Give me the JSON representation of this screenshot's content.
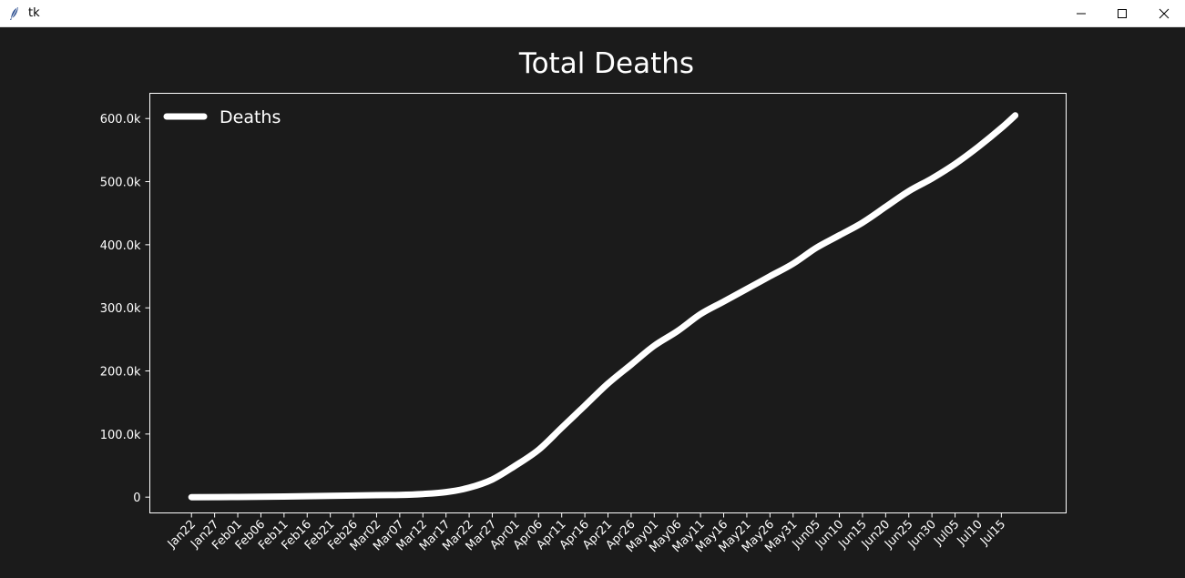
{
  "window": {
    "title": "tk"
  },
  "chart_data": {
    "type": "line",
    "title": "Total Deaths",
    "xlabel": "",
    "ylabel": "",
    "legend": {
      "placement": "top-left",
      "entries": [
        "Deaths"
      ]
    },
    "grid": false,
    "x_ticks": [
      "Jan22",
      "Jan27",
      "Feb01",
      "Feb06",
      "Feb11",
      "Feb16",
      "Feb21",
      "Feb26",
      "Mar02",
      "Mar07",
      "Mar12",
      "Mar17",
      "Mar22",
      "Mar27",
      "Apr01",
      "Apr06",
      "Apr11",
      "Apr16",
      "Apr21",
      "Apr26",
      "May01",
      "May06",
      "May11",
      "May16",
      "May21",
      "May26",
      "May31",
      "Jun05",
      "Jun10",
      "Jun15",
      "Jun20",
      "Jun25",
      "Jun30",
      "Jul05",
      "Jul10",
      "Jul15"
    ],
    "y_ticks": [
      "0",
      "100.0k",
      "200.0k",
      "300.0k",
      "400.0k",
      "500.0k",
      "600.0k"
    ],
    "ylim": [
      -25000,
      640000
    ],
    "xlim_dates": [
      "2020-01-13",
      "2020-07-29"
    ],
    "colors": {
      "background": "#1b1b1b",
      "line": "#ffffff",
      "text": "#ffffff"
    },
    "series": [
      {
        "name": "Deaths",
        "x": [
          "2020-01-22",
          "2020-02-01",
          "2020-02-11",
          "2020-02-21",
          "2020-03-02",
          "2020-03-07",
          "2020-03-12",
          "2020-03-17",
          "2020-03-22",
          "2020-03-27",
          "2020-04-01",
          "2020-04-06",
          "2020-04-11",
          "2020-04-16",
          "2020-04-21",
          "2020-04-26",
          "2020-05-01",
          "2020-05-06",
          "2020-05-11",
          "2020-05-16",
          "2020-05-21",
          "2020-05-26",
          "2020-05-31",
          "2020-06-05",
          "2020-06-10",
          "2020-06-15",
          "2020-06-20",
          "2020-06-25",
          "2020-06-30",
          "2020-07-05",
          "2020-07-10",
          "2020-07-15",
          "2020-07-18"
        ],
        "values": [
          17,
          250,
          1000,
          2000,
          3100,
          3600,
          5000,
          8000,
          15000,
          28000,
          50000,
          75000,
          110000,
          145000,
          180000,
          210000,
          240000,
          263000,
          290000,
          310000,
          330000,
          350000,
          370000,
          395000,
          415000,
          435000,
          460000,
          485000,
          505000,
          528000,
          555000,
          585000,
          605000
        ]
      }
    ]
  }
}
